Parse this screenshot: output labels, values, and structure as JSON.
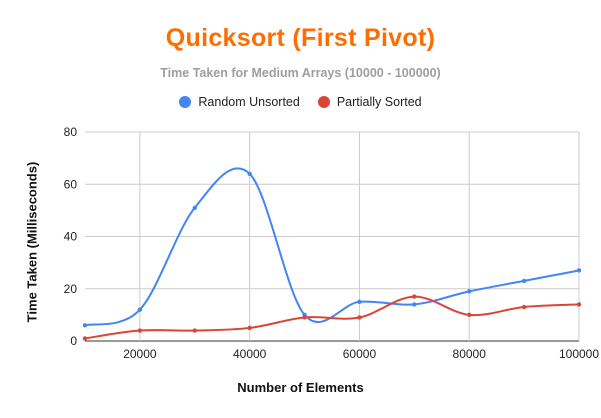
{
  "chart_data": {
    "type": "line",
    "title": "Quicksort (First Pivot)",
    "subtitle": "Time Taken for Medium Arrays (10000 - 100000)",
    "xlabel": "Number of Elements",
    "ylabel": "Time Taken (Milliseconds)",
    "x": [
      10000,
      20000,
      30000,
      40000,
      50000,
      60000,
      70000,
      80000,
      90000,
      100000
    ],
    "xlim": [
      10000,
      100000
    ],
    "xticks": [
      20000,
      40000,
      60000,
      80000,
      100000
    ],
    "ylim": [
      0,
      80
    ],
    "yticks": [
      0,
      20,
      40,
      60,
      80
    ],
    "grid": true,
    "smooth": true,
    "legend_position": "top",
    "series": [
      {
        "name": "Random Unsorted",
        "color": "#4285f4",
        "values": [
          6,
          12,
          51,
          64,
          10,
          15,
          14,
          19,
          23,
          27
        ]
      },
      {
        "name": "Partially Sorted",
        "color": "#db4437",
        "values": [
          1,
          4,
          4,
          5,
          9,
          9,
          17,
          10,
          13,
          14
        ]
      }
    ]
  },
  "colors": {
    "title": "#ff6d01",
    "subtitle": "#9e9e9e",
    "grid": "#cccccc",
    "axis": "#333333"
  }
}
